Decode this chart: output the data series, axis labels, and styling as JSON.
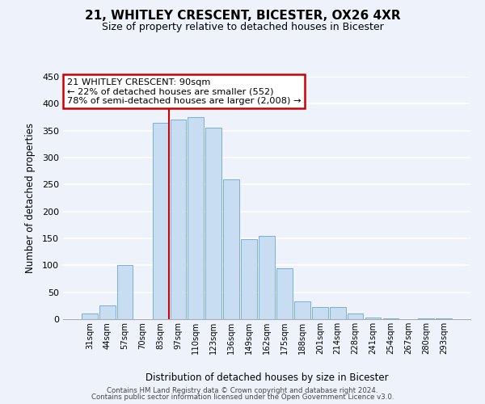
{
  "title": "21, WHITLEY CRESCENT, BICESTER, OX26 4XR",
  "subtitle": "Size of property relative to detached houses in Bicester",
  "xlabel": "Distribution of detached houses by size in Bicester",
  "ylabel": "Number of detached properties",
  "bar_labels": [
    "31sqm",
    "44sqm",
    "57sqm",
    "70sqm",
    "83sqm",
    "97sqm",
    "110sqm",
    "123sqm",
    "136sqm",
    "149sqm",
    "162sqm",
    "175sqm",
    "188sqm",
    "201sqm",
    "214sqm",
    "228sqm",
    "241sqm",
    "254sqm",
    "267sqm",
    "280sqm",
    "293sqm"
  ],
  "bar_values": [
    10,
    25,
    100,
    0,
    365,
    370,
    375,
    355,
    260,
    148,
    155,
    95,
    33,
    22,
    22,
    11,
    3,
    1,
    0,
    1,
    1
  ],
  "bar_color": "#c9ddf2",
  "bar_edge_color": "#7bafd4",
  "vline_x_index": 4.5,
  "vline_color": "#cc0000",
  "ylim": [
    0,
    450
  ],
  "yticks": [
    0,
    50,
    100,
    150,
    200,
    250,
    300,
    350,
    400,
    450
  ],
  "annotation_line1": "21 WHITLEY CRESCENT: 90sqm",
  "annotation_line2": "← 22% of detached houses are smaller (552)",
  "annotation_line3": "78% of semi-detached houses are larger (2,008) →",
  "footer_line1": "Contains HM Land Registry data © Crown copyright and database right 2024.",
  "footer_line2": "Contains public sector information licensed under the Open Government Licence v3.0.",
  "bg_color": "#eef3fb",
  "grid_color": "#ffffff",
  "annotation_box_facecolor": "#ffffff",
  "annotation_box_edgecolor": "#cc0000"
}
